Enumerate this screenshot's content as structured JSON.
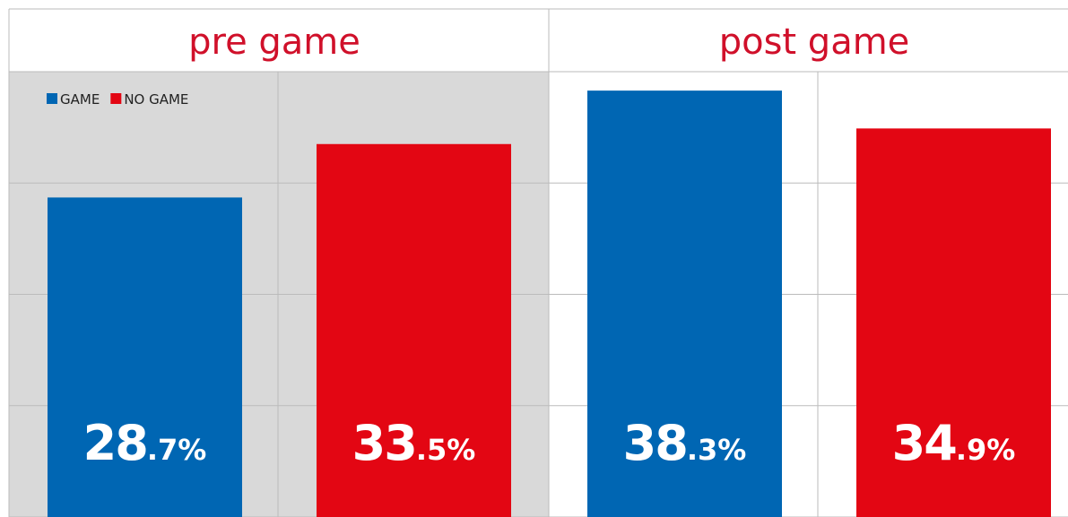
{
  "chart_data": {
    "type": "bar",
    "categories": [
      "pre game",
      "post game"
    ],
    "series": [
      {
        "name": "GAME",
        "color": "#0066b3",
        "values": [
          28.7,
          38.3
        ],
        "value_labels": [
          "28.7%",
          "38.3%"
        ]
      },
      {
        "name": "NO GAME",
        "color": "#e30613",
        "values": [
          33.5,
          34.9
        ],
        "value_labels": [
          "33.5%",
          "34.9%"
        ]
      }
    ],
    "ylim": [
      0,
      40
    ],
    "yticks": [
      0,
      10,
      20,
      30,
      40
    ],
    "grid": true,
    "legend": "upper left"
  }
}
